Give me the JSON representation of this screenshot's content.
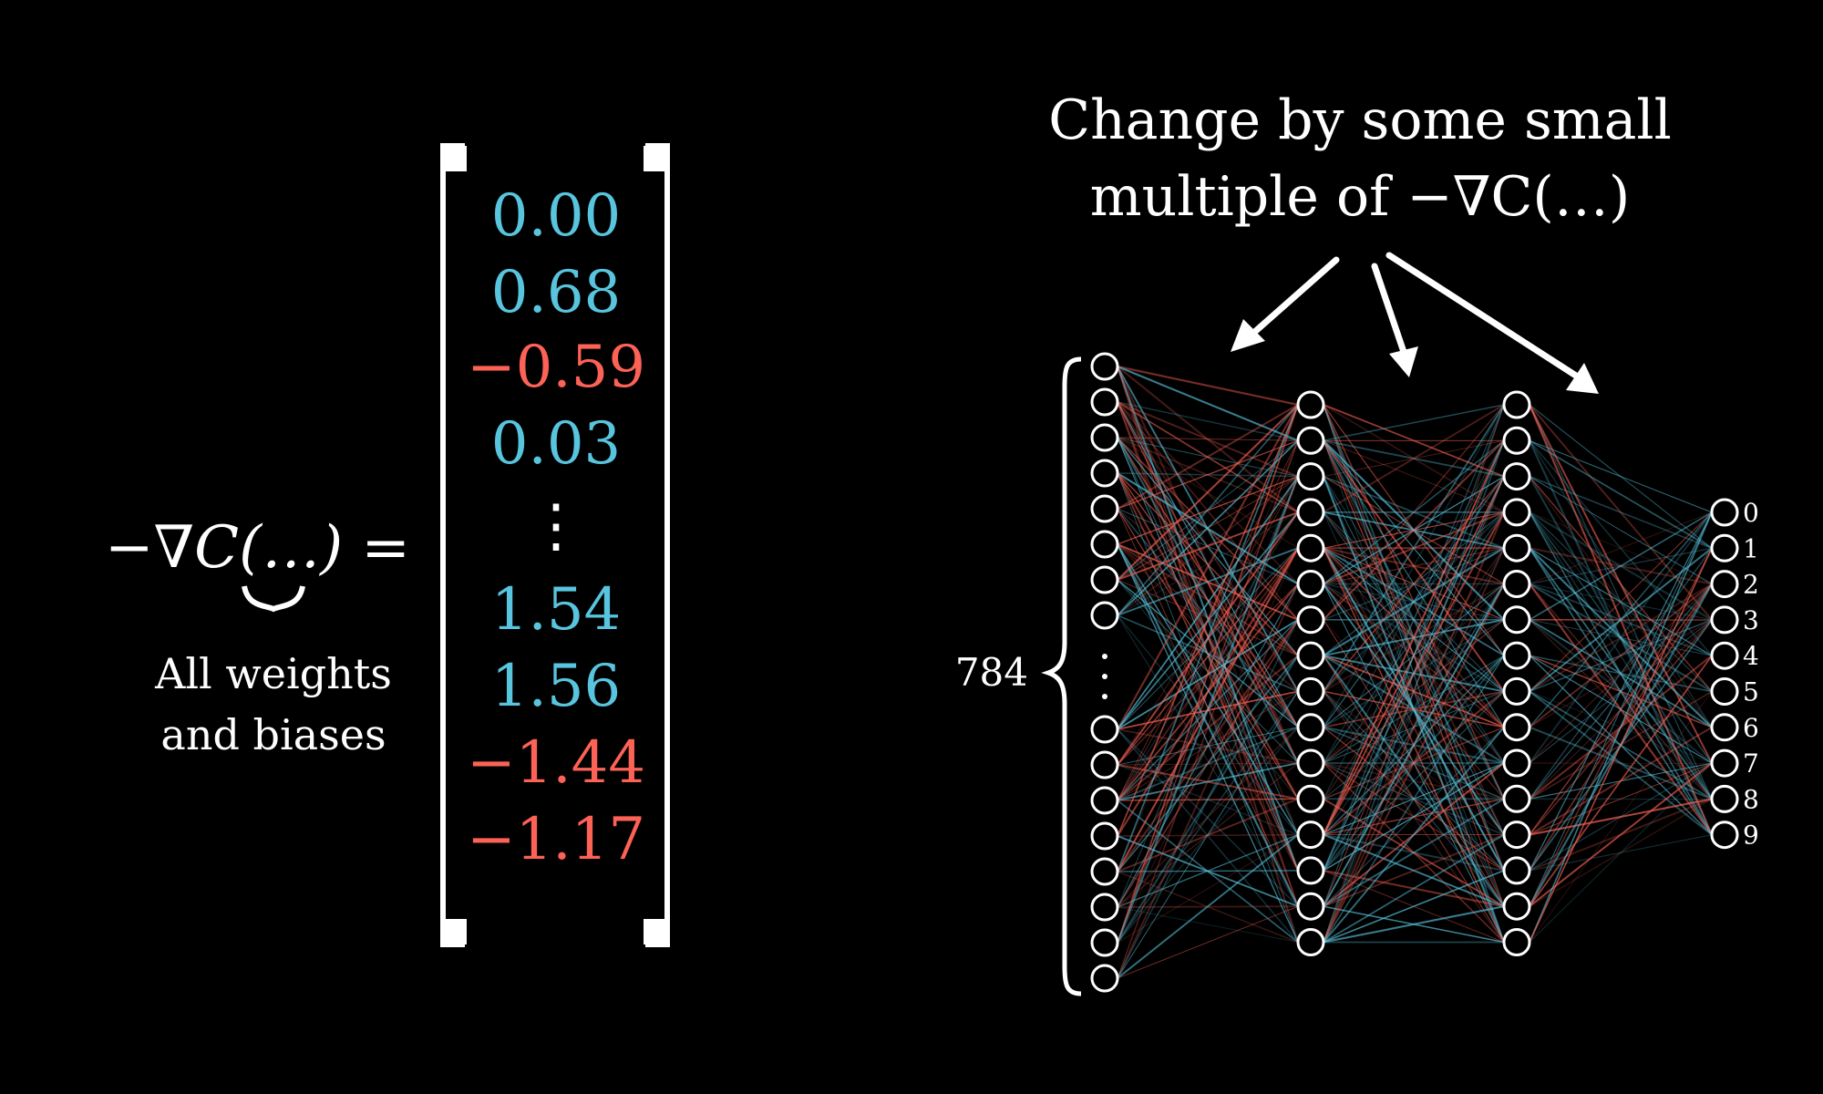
{
  "equation": {
    "lhs": "−∇C(…) =",
    "brace_caption": [
      "All weights",
      "and biases"
    ]
  },
  "vector": {
    "entries": [
      {
        "text": "0.00",
        "sign": "pos"
      },
      {
        "text": "0.68",
        "sign": "pos"
      },
      {
        "text": "−0.59",
        "sign": "neg"
      },
      {
        "text": "0.03",
        "sign": "pos"
      },
      {
        "text": "⋮",
        "sign": "dots"
      },
      {
        "text": "1.54",
        "sign": "pos"
      },
      {
        "text": "1.56",
        "sign": "pos"
      },
      {
        "text": "−1.44",
        "sign": "neg"
      },
      {
        "text": "−1.17",
        "sign": "neg"
      }
    ]
  },
  "annotation": {
    "lines": [
      "Change by some small",
      "multiple of −∇C(…)"
    ]
  },
  "network": {
    "input_label": "784",
    "layers": [
      {
        "name": "input",
        "shown_neurons": 16,
        "has_ellipsis": true
      },
      {
        "name": "hidden-1",
        "shown_neurons": 16,
        "has_ellipsis": false
      },
      {
        "name": "hidden-2",
        "shown_neurons": 16,
        "has_ellipsis": false
      },
      {
        "name": "output",
        "shown_neurons": 10,
        "has_ellipsis": false
      }
    ],
    "output_labels": [
      "0",
      "1",
      "2",
      "3",
      "4",
      "5",
      "6",
      "7",
      "8",
      "9"
    ]
  },
  "colors": {
    "background": "#000000",
    "positive": "#58C4DD",
    "negative": "#FC6255",
    "foreground": "#FFFFFF"
  }
}
